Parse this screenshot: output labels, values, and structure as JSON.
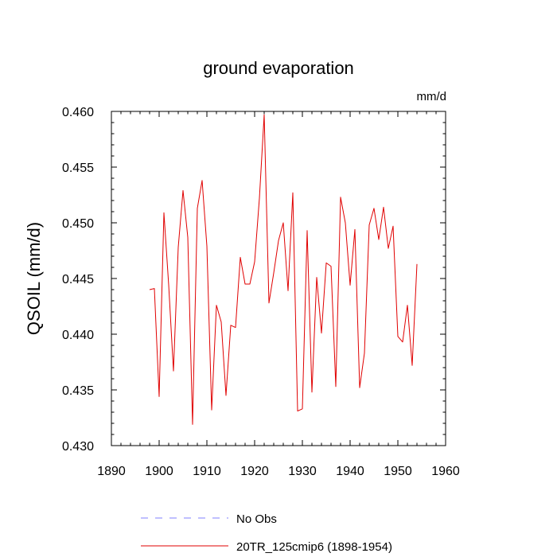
{
  "chart_data": {
    "type": "line",
    "title": "ground evaporation",
    "units": "mm/d",
    "ylabel": "QSOIL  (mm/d)",
    "xlabel": "",
    "xlim": [
      1890,
      1960
    ],
    "ylim": [
      0.43,
      0.46
    ],
    "x_ticks": [
      1890,
      1900,
      1910,
      1920,
      1930,
      1940,
      1950,
      1960
    ],
    "x_tick_labels": [
      "1890",
      "1900",
      "1910",
      "1920",
      "1930",
      "1940",
      "1950",
      "1960"
    ],
    "y_ticks": [
      0.43,
      0.435,
      0.44,
      0.445,
      0.45,
      0.455,
      0.46
    ],
    "y_tick_labels": [
      "0.430",
      "0.435",
      "0.440",
      "0.445",
      "0.450",
      "0.455",
      "0.460"
    ],
    "legend": [
      {
        "label": "No Obs",
        "color": "#8080ff",
        "dashed": true
      },
      {
        "label": "20TR_125cmip6 (1898-1954)",
        "color": "#e00000",
        "dashed": false
      }
    ],
    "series": [
      {
        "name": "20TR_125cmip6 (1898-1954)",
        "color": "#e00000",
        "x": [
          1898,
          1899,
          1900,
          1901,
          1902,
          1903,
          1904,
          1905,
          1906,
          1907,
          1908,
          1909,
          1910,
          1911,
          1912,
          1913,
          1914,
          1915,
          1916,
          1917,
          1918,
          1919,
          1920,
          1921,
          1922,
          1923,
          1924,
          1925,
          1926,
          1927,
          1928,
          1929,
          1930,
          1931,
          1932,
          1933,
          1934,
          1935,
          1936,
          1937,
          1938,
          1939,
          1940,
          1941,
          1942,
          1943,
          1944,
          1945,
          1946,
          1947,
          1948,
          1949,
          1950,
          1951,
          1952,
          1953,
          1954
        ],
        "values": [
          0.444,
          0.4441,
          0.4344,
          0.4509,
          0.4444,
          0.4367,
          0.4478,
          0.4529,
          0.4487,
          0.4319,
          0.4513,
          0.4538,
          0.4479,
          0.4332,
          0.4426,
          0.4411,
          0.4345,
          0.4408,
          0.4406,
          0.4469,
          0.4445,
          0.4445,
          0.4465,
          0.4522,
          0.4597,
          0.4428,
          0.4455,
          0.4484,
          0.45,
          0.4439,
          0.4527,
          0.4331,
          0.4333,
          0.4493,
          0.4348,
          0.4451,
          0.4401,
          0.4464,
          0.4461,
          0.4353,
          0.4523,
          0.45,
          0.4444,
          0.4494,
          0.4352,
          0.4383,
          0.4498,
          0.4513,
          0.4485,
          0.4514,
          0.4477,
          0.4497,
          0.4398,
          0.4393,
          0.4426,
          0.4372,
          0.4463
        ]
      }
    ]
  }
}
